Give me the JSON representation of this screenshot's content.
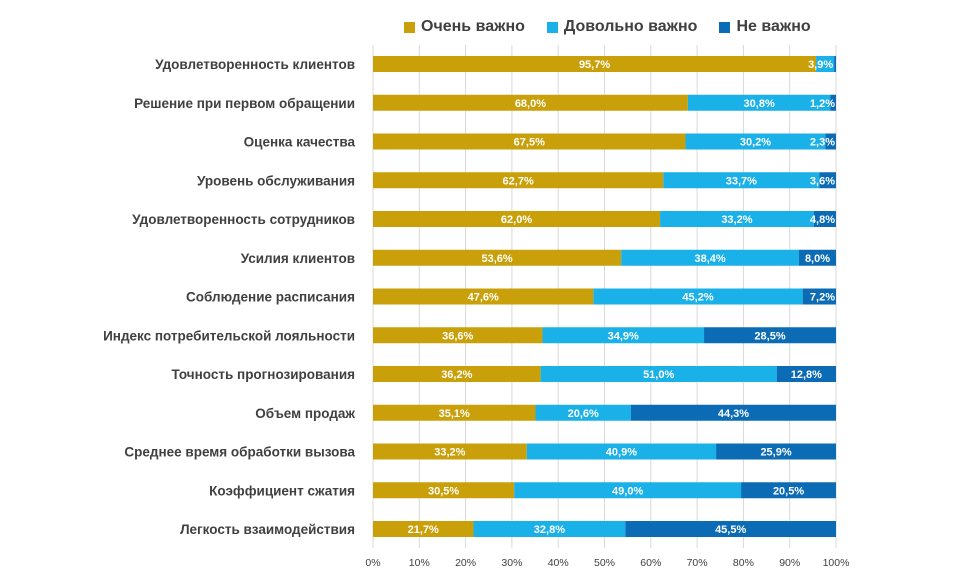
{
  "chart_data": {
    "type": "bar",
    "orientation": "horizontal",
    "stacked": true,
    "categories": [
      "Удовлетворенность клиентов",
      "Решение при первом обращении",
      "Оценка качества",
      "Уровень обслуживания",
      "Удовлетворенность сотрудников",
      "Усилия клиентов",
      "Соблюдение расписания",
      "Индекс потребительской лояльности",
      "Точность прогнозирования",
      "Объем продаж",
      "Среднее время обработки вызова",
      "Коэффициент сжатия",
      "Легкость взаимодействия"
    ],
    "series": [
      {
        "name": "Очень важно",
        "color": "#C9A00A",
        "values": [
          95.7,
          68.0,
          67.5,
          62.7,
          62.0,
          53.6,
          47.6,
          36.6,
          36.2,
          35.1,
          33.2,
          30.5,
          21.7
        ],
        "labels": [
          "95,7%",
          "68,0%",
          "67,5%",
          "62,7%",
          "62,0%",
          "53,6%",
          "47,6%",
          "36,6%",
          "36,2%",
          "35,1%",
          "33,2%",
          "30,5%",
          "21,7%"
        ]
      },
      {
        "name": "Довольно важно",
        "color": "#1AB0E8",
        "values": [
          3.9,
          30.8,
          30.2,
          33.7,
          33.2,
          38.4,
          45.2,
          34.9,
          51.0,
          20.6,
          40.9,
          49.0,
          32.8
        ],
        "labels": [
          "3,9%",
          "30,8%",
          "30,2%",
          "33,7%",
          "33,2%",
          "38,4%",
          "45,2%",
          "34,9%",
          "51,0%",
          "20,6%",
          "40,9%",
          "49,0%",
          "32,8%"
        ]
      },
      {
        "name": "Не важно",
        "color": "#0B6BB5",
        "values": [
          0.4,
          1.2,
          2.3,
          3.6,
          4.8,
          8.0,
          7.2,
          28.5,
          12.8,
          44.3,
          25.9,
          20.5,
          45.5
        ],
        "labels": [
          "",
          "1,2%",
          "2,3%",
          "3,6%",
          "4,8%",
          "8,0%",
          "7,2%",
          "28,5%",
          "12,8%",
          "44,3%",
          "25,9%",
          "20,5%",
          "45,5%"
        ]
      }
    ],
    "xlim": [
      0,
      100
    ],
    "x_ticks": [
      "0%",
      "10%",
      "20%",
      "30%",
      "40%",
      "50%",
      "60%",
      "70%",
      "80%",
      "90%",
      "100%"
    ],
    "legend_position": "top",
    "grid": true
  }
}
